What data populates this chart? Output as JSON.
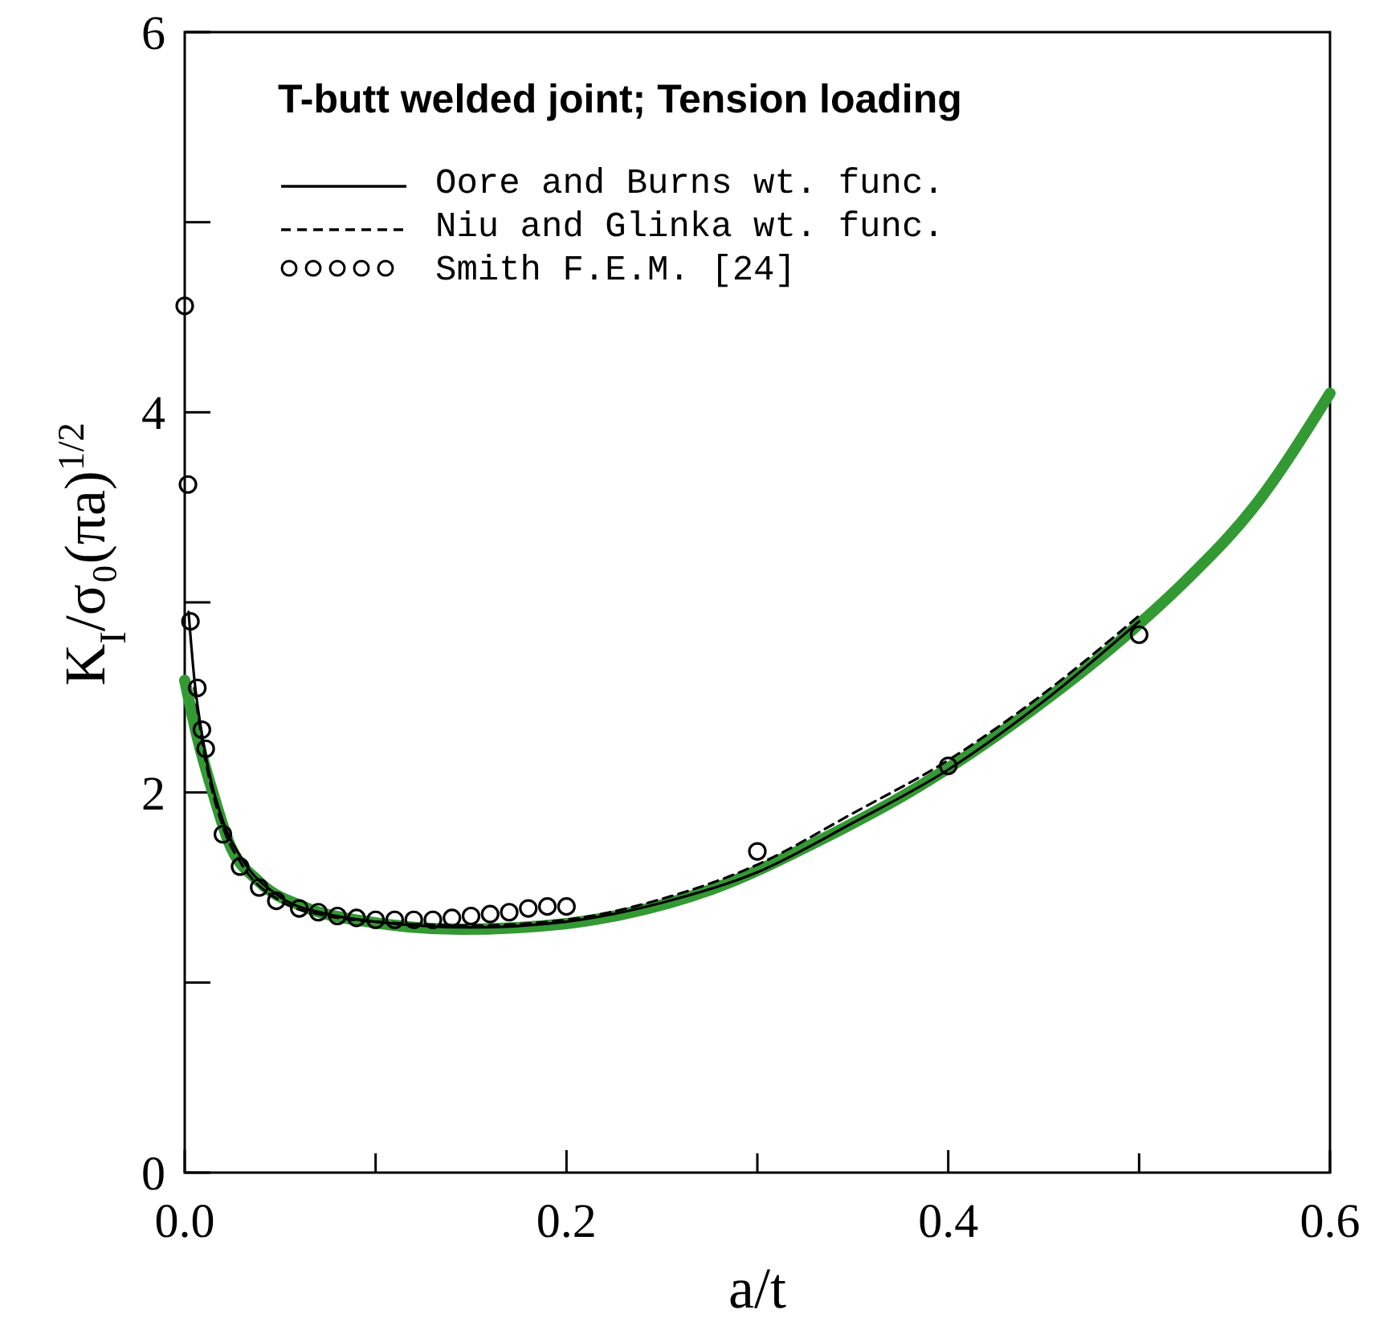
{
  "chart_data": {
    "type": "line",
    "title": "T-butt welded joint; Tension loading",
    "xlabel": "a/t",
    "ylabel": "K$_{I}$/σ₀(πa)$^{1/2}$",
    "xlim": [
      0,
      0.6
    ],
    "ylim": [
      0,
      6
    ],
    "xticks": [
      {
        "value": 0,
        "label": "0.0"
      },
      {
        "value": 0.1,
        "label": null
      },
      {
        "value": 0.2,
        "label": "0.2"
      },
      {
        "value": 0.3,
        "label": null
      },
      {
        "value": 0.4,
        "label": "0.4"
      },
      {
        "value": 0.5,
        "label": null
      },
      {
        "value": 0.6,
        "label": "0.6"
      }
    ],
    "yticks": [
      0,
      {
        "value": 1,
        "label": null
      },
      2,
      {
        "value": 3,
        "label": null
      },
      4,
      {
        "value": 5,
        "label": null
      },
      6
    ],
    "grid": false,
    "legend": "top left",
    "series": [
      {
        "name": "Oore and Burns wt. func.",
        "color": "#000000",
        "line_style": "solid",
        "marker": "none",
        "x": [
          0.002,
          0.005,
          0.01,
          0.02,
          0.03,
          0.05,
          0.075,
          0.1,
          0.15,
          0.2,
          0.25,
          0.3,
          0.35,
          0.4,
          0.45,
          0.5
        ],
        "values": [
          2.95,
          2.6,
          2.25,
          1.85,
          1.65,
          1.45,
          1.36,
          1.32,
          1.29,
          1.32,
          1.42,
          1.58,
          1.84,
          2.12,
          2.48,
          2.9
        ]
      },
      {
        "name": "Niu and Glinka wt. func.",
        "color": "#000000",
        "line_style": "dashed",
        "marker": "none",
        "x": [
          0.005,
          0.01,
          0.02,
          0.03,
          0.05,
          0.075,
          0.1,
          0.15,
          0.2,
          0.25,
          0.3,
          0.35,
          0.4,
          0.45,
          0.5
        ],
        "values": [
          2.55,
          2.22,
          1.82,
          1.62,
          1.43,
          1.35,
          1.32,
          1.3,
          1.33,
          1.44,
          1.62,
          1.89,
          2.17,
          2.52,
          2.93
        ]
      },
      {
        "type": "scatter",
        "name": "Smith F.E.M. [24]",
        "color": "#000000",
        "marker": "circle",
        "x": [
          0,
          0.0017,
          0.003,
          0.0066,
          0.009,
          0.011,
          0.02,
          0.029,
          0.039,
          0.048,
          0.06,
          0.07,
          0.08,
          0.09,
          0.1,
          0.11,
          0.12,
          0.13,
          0.14,
          0.15,
          0.16,
          0.17,
          0.18,
          0.19,
          0.2,
          0.3,
          0.4,
          0.5
        ],
        "values": [
          4.56,
          3.62,
          2.9,
          2.55,
          2.33,
          2.23,
          1.78,
          1.61,
          1.5,
          1.43,
          1.39,
          1.37,
          1.35,
          1.34,
          1.33,
          1.33,
          1.33,
          1.33,
          1.34,
          1.35,
          1.36,
          1.37,
          1.39,
          1.4,
          1.4,
          1.69,
          2.14,
          2.83
        ]
      },
      {
        "color": "#339933",
        "line_style": "solid",
        "marker": "none",
        "x": [
          0,
          0.0066,
          0.015,
          0.023,
          0.039,
          0.062,
          0.096,
          0.145,
          0.2,
          0.23,
          0.276,
          0.331,
          0.386,
          0.442,
          0.497,
          0.525,
          0.56,
          0.6
        ],
        "values": [
          2.59,
          2.29,
          1.99,
          1.74,
          1.53,
          1.4,
          1.32,
          1.28,
          1.31,
          1.36,
          1.49,
          1.74,
          2.04,
          2.42,
          2.86,
          3.12,
          3.5,
          4.1
        ]
      }
    ]
  }
}
